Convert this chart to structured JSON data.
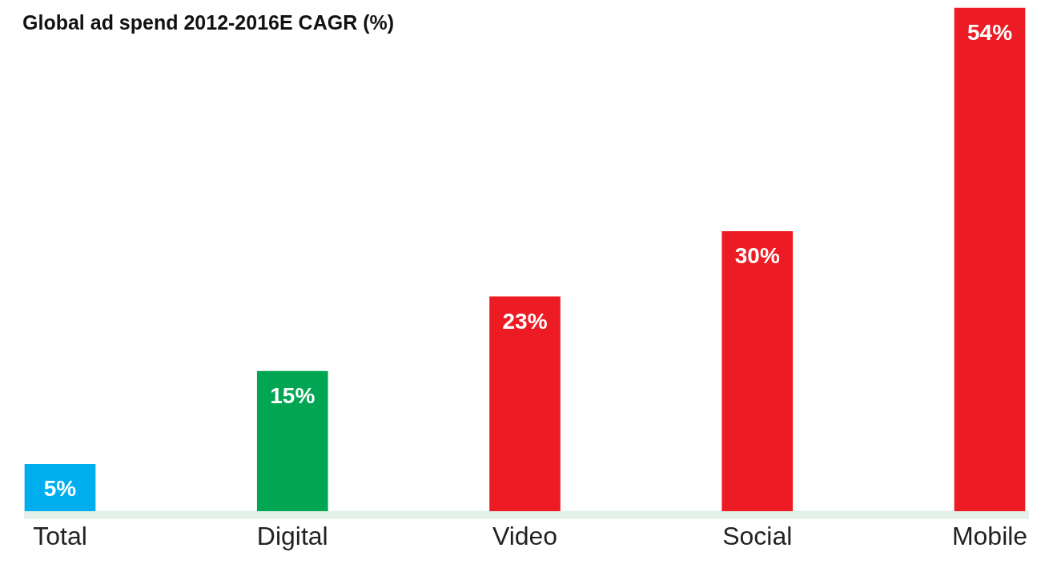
{
  "chart_data": {
    "type": "bar",
    "title": "Global ad spend 2012-2016E CAGR (%)",
    "categories": [
      "Total",
      "Digital",
      "Video",
      "Social",
      "Mobile"
    ],
    "values": [
      5,
      15,
      23,
      30,
      54
    ],
    "colors": [
      "#00aeef",
      "#00a651",
      "#ed1c24",
      "#ed1c24",
      "#ed1c24"
    ],
    "value_labels": [
      "5%",
      "15%",
      "23%",
      "30%",
      "54%"
    ],
    "grid": false,
    "legend": false
  }
}
